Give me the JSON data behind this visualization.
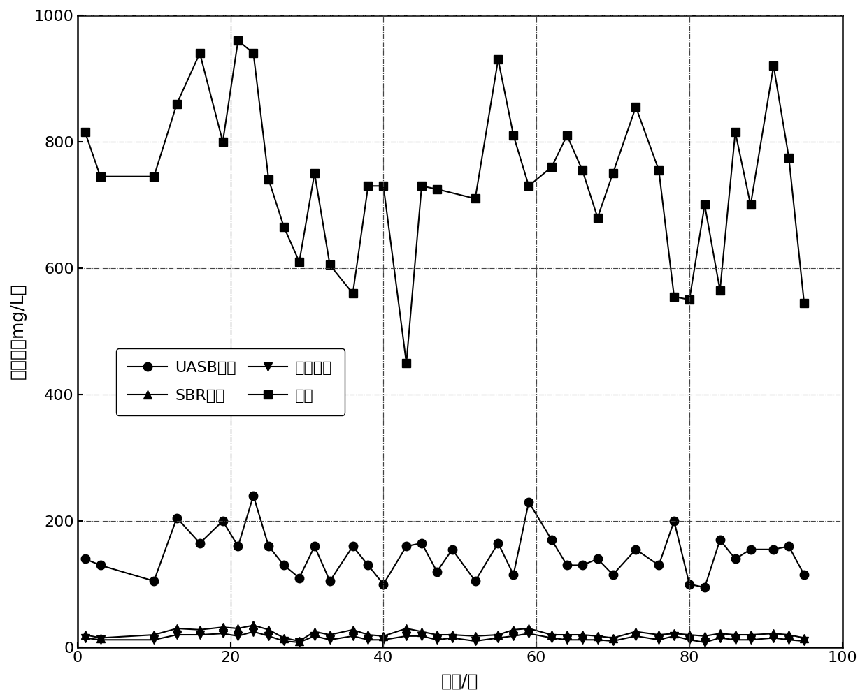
{
  "title": "",
  "xlabel": "时间/天",
  "ylabel": "氨氮／（mg/L）",
  "xlim": [
    0,
    100
  ],
  "ylim": [
    0,
    1000
  ],
  "xticks": [
    0,
    20,
    40,
    60,
    80,
    100
  ],
  "yticks": [
    0,
    200,
    400,
    600,
    800,
    1000
  ],
  "background_color": "#ffffff",
  "uasb_x": [
    1,
    3,
    10,
    13,
    16,
    19,
    21,
    23,
    25,
    27,
    29,
    31,
    33,
    36,
    38,
    40,
    43,
    45,
    47,
    49,
    52,
    55,
    57,
    59,
    62,
    64,
    66,
    68,
    70,
    73,
    76,
    78,
    80,
    82,
    84,
    86,
    88,
    91,
    93,
    95
  ],
  "uasb_y": [
    140,
    130,
    105,
    205,
    165,
    200,
    160,
    240,
    160,
    130,
    110,
    160,
    105,
    160,
    130,
    100,
    160,
    165,
    120,
    155,
    105,
    165,
    115,
    230,
    170,
    130,
    130,
    140,
    115,
    155,
    130,
    200,
    100,
    95,
    170,
    140,
    155,
    155,
    160,
    115
  ],
  "sbr_x": [
    1,
    3,
    10,
    13,
    16,
    19,
    21,
    23,
    25,
    27,
    29,
    31,
    33,
    36,
    38,
    40,
    43,
    45,
    47,
    49,
    52,
    55,
    57,
    59,
    62,
    64,
    66,
    68,
    70,
    73,
    76,
    78,
    80,
    82,
    84,
    86,
    88,
    91,
    93,
    95
  ],
  "sbr_y": [
    20,
    15,
    20,
    30,
    28,
    32,
    30,
    35,
    28,
    15,
    10,
    25,
    20,
    28,
    20,
    18,
    30,
    25,
    20,
    20,
    18,
    20,
    28,
    30,
    20,
    20,
    20,
    18,
    15,
    25,
    20,
    22,
    20,
    18,
    22,
    20,
    20,
    22,
    20,
    15
  ],
  "sys_x": [
    1,
    3,
    10,
    13,
    16,
    19,
    21,
    23,
    25,
    27,
    29,
    31,
    33,
    36,
    38,
    40,
    43,
    45,
    47,
    49,
    52,
    55,
    57,
    59,
    62,
    64,
    66,
    68,
    70,
    73,
    76,
    78,
    80,
    82,
    84,
    86,
    88,
    91,
    93,
    95
  ],
  "sys_y": [
    15,
    12,
    12,
    20,
    20,
    22,
    18,
    25,
    18,
    10,
    8,
    18,
    12,
    18,
    12,
    12,
    18,
    18,
    12,
    15,
    10,
    15,
    18,
    22,
    15,
    12,
    12,
    12,
    10,
    18,
    12,
    18,
    12,
    8,
    15,
    12,
    12,
    15,
    12,
    10
  ],
  "raw_x": [
    1,
    3,
    10,
    13,
    16,
    19,
    21,
    23,
    25,
    27,
    29,
    31,
    33,
    36,
    38,
    40,
    43,
    45,
    47,
    52,
    55,
    57,
    59,
    62,
    64,
    66,
    68,
    70,
    73,
    76,
    78,
    80,
    82,
    84,
    86,
    88,
    91,
    93,
    95
  ],
  "raw_y": [
    815,
    745,
    745,
    860,
    940,
    800,
    960,
    940,
    740,
    665,
    610,
    750,
    605,
    560,
    730,
    730,
    450,
    730,
    725,
    710,
    930,
    810,
    730,
    760,
    810,
    755,
    680,
    750,
    855,
    755,
    555,
    550,
    700,
    565,
    815,
    700,
    920,
    775,
    545
  ],
  "legend_row1": [
    "UASB出水",
    "SBR出水"
  ],
  "legend_row2": [
    "系统出水",
    "原液"
  ],
  "line_color": "#000000",
  "fontsize_label": 18,
  "fontsize_tick": 16,
  "fontsize_legend": 16
}
